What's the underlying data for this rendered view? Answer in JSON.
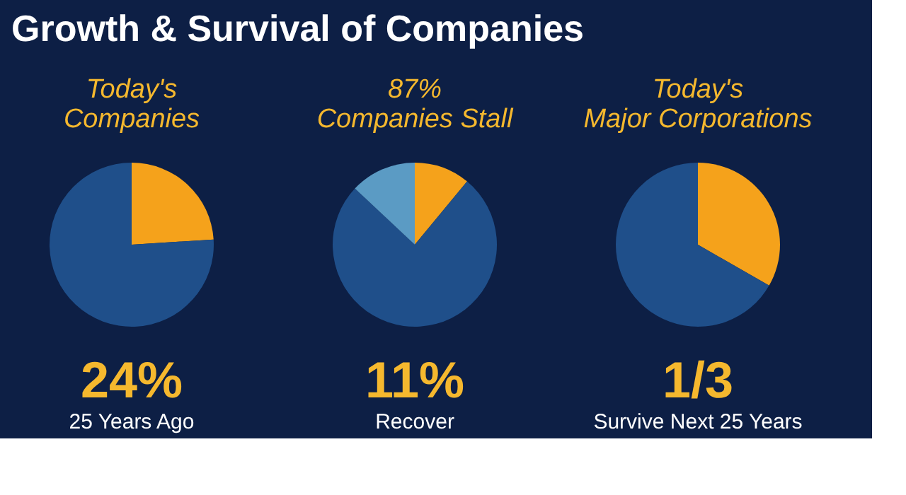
{
  "chart_data": [
    {
      "type": "other",
      "title": "Growth & Survival of Companies"
    },
    {
      "type": "pie",
      "title": "Today's Companies",
      "categories": [
        null,
        null
      ],
      "values": [
        24,
        76
      ],
      "colors": [
        "#f5a21b",
        "#1f4f8a"
      ],
      "annotations": [
        "24%",
        "25 Years Ago"
      ],
      "legend": false
    },
    {
      "type": "pie",
      "title": "87% Companies Stall",
      "categories": [
        null,
        null,
        null
      ],
      "values": [
        11,
        76,
        13
      ],
      "colors": [
        "#f5a21b",
        "#1f4f8a",
        "#5b9bc4"
      ],
      "annotations": [
        "11%",
        "Recover"
      ],
      "legend": false
    },
    {
      "type": "pie",
      "title": "Today's Major Corporations",
      "categories": [
        null,
        null
      ],
      "values": [
        33.3,
        66.7
      ],
      "colors": [
        "#f5a21b",
        "#1f4f8a"
      ],
      "annotations": [
        "1/3",
        "Survive Next 25 Years"
      ],
      "legend": false
    }
  ]
}
